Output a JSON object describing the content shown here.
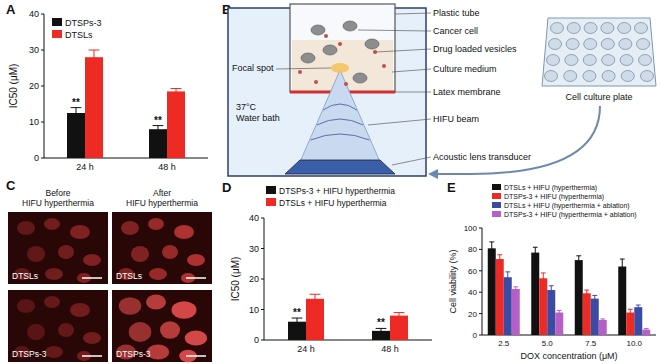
{
  "chart_data": [
    {
      "type": "bar",
      "y_label": "IC50 (μM)",
      "categories": [
        "24 h",
        "48 h"
      ],
      "ylim": [
        0,
        40
      ],
      "yticks": [
        0,
        10,
        20,
        30,
        40
      ],
      "grid": false,
      "legend": "upper left",
      "series": [
        {
          "name": "DTSPs-3",
          "color": "#111111",
          "values": [
            12.5,
            8
          ],
          "errors": [
            1.5,
            1
          ],
          "annotations": [
            "**",
            "**"
          ]
        },
        {
          "name": "DTSLs",
          "color": "#ee2a24",
          "values": [
            28,
            18.5
          ],
          "errors": [
            2,
            0.8
          ]
        }
      ]
    },
    {
      "type": "bar",
      "y_label": "IC50 (μM)",
      "categories": [
        "24 h",
        "48 h"
      ],
      "ylim": [
        0,
        40
      ],
      "yticks": [
        0,
        10,
        20,
        30,
        40
      ],
      "grid": false,
      "legend": "top",
      "series": [
        {
          "name": "DTSPs-3 + HIFU hyperthermia",
          "color": "#111111",
          "values": [
            6,
            3
          ],
          "errors": [
            1.2,
            0.8
          ],
          "annotations": [
            "**",
            "**"
          ]
        },
        {
          "name": "DTSLs + HIFU hyperthermia",
          "color": "#ee2a24",
          "values": [
            13.5,
            8
          ],
          "errors": [
            1.5,
            1
          ]
        }
      ]
    },
    {
      "type": "bar",
      "y_label": "Cell viability (%)",
      "x_label": "DOX concentration (μM)",
      "categories": [
        "2.5",
        "5.0",
        "7.5",
        "10.0"
      ],
      "ylim": [
        0,
        100
      ],
      "yticks": [
        0,
        20,
        40,
        60,
        80,
        100
      ],
      "grid": false,
      "legend": "upper right",
      "series": [
        {
          "name": "DTSLs + HIFU (hyperthermia)",
          "color": "#111111",
          "values": [
            81,
            77,
            70,
            64
          ],
          "errors": [
            6,
            5,
            4,
            7
          ]
        },
        {
          "name": "DTSPs-3 + HIFU (hyperthermia)",
          "color": "#ee2a24",
          "values": [
            71,
            53,
            39,
            21
          ],
          "errors": [
            4,
            5,
            3,
            3
          ]
        },
        {
          "name": "DTSLs + HIFU (hyperthermia + ablation)",
          "color": "#3b4ba3",
          "values": [
            54,
            42,
            34,
            26
          ],
          "errors": [
            5,
            4,
            3,
            2
          ]
        },
        {
          "name": "DTSPs-3 + HIFU (hyperthermia + ablation)",
          "color": "#b65fc6",
          "values": [
            43,
            21,
            14,
            5
          ],
          "errors": [
            2,
            2,
            1,
            1
          ]
        }
      ]
    }
  ],
  "panel_labels": [
    "A",
    "B",
    "C",
    "D",
    "E"
  ],
  "diagram": {
    "labels": [
      "Plastic tube",
      "Cancer cell",
      "Drug loaded vesicles",
      "Focal spot",
      "Culture medium",
      "Latex membrane",
      "37°C",
      "Water bath",
      "HIFU beam",
      "Acoustic lens transducer"
    ],
    "plate_label": "Cell culture plate"
  },
  "micrographs": {
    "columns": [
      [
        "Before",
        "HIFU hyperthermia"
      ],
      [
        "After",
        "HIFU hyperthermia"
      ]
    ],
    "rows": [
      "DTSLs",
      "DTSPs-3"
    ]
  }
}
